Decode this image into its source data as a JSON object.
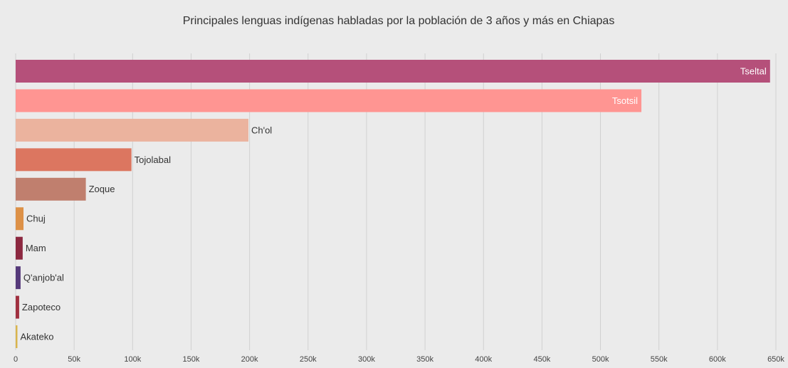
{
  "chart_data": {
    "type": "bar",
    "orientation": "horizontal",
    "title": "Principales lenguas indígenas habladas por la población de 3 años y más en Chiapas",
    "categories": [
      "Tseltal",
      "Tsotsil",
      "Ch'ol",
      "Tojolabal",
      "Zoque",
      "Chuj",
      "Mam",
      "Q'anjob'al",
      "Zapoteco",
      "Akateko"
    ],
    "values": [
      645000,
      535000,
      199000,
      99000,
      60000,
      6700,
      6000,
      4200,
      3000,
      1500
    ],
    "colors": [
      "#b5507a",
      "#ff9592",
      "#ebb39e",
      "#dc7660",
      "#c07f6e",
      "#dd9147",
      "#8c2840",
      "#55397a",
      "#a03040",
      "#d9b44c"
    ],
    "xlim": [
      0,
      650000
    ],
    "xticks": [
      0,
      {
        "value": 50000,
        "label": "50k"
      },
      {
        "value": 100000,
        "label": "100k"
      },
      {
        "value": 150000,
        "label": "150k"
      },
      {
        "value": 200000,
        "label": "200k"
      },
      {
        "value": 250000,
        "label": "250k"
      },
      {
        "value": 300000,
        "label": "300k"
      },
      {
        "value": 350000,
        "label": "350k"
      },
      {
        "value": 400000,
        "label": "400k"
      },
      {
        "value": 450000,
        "label": "450k"
      },
      {
        "value": 500000,
        "label": "500k"
      },
      {
        "value": 550000,
        "label": "550k"
      },
      {
        "value": 600000,
        "label": "600k"
      },
      {
        "value": 650000,
        "label": "650k"
      }
    ],
    "grid": true
  }
}
